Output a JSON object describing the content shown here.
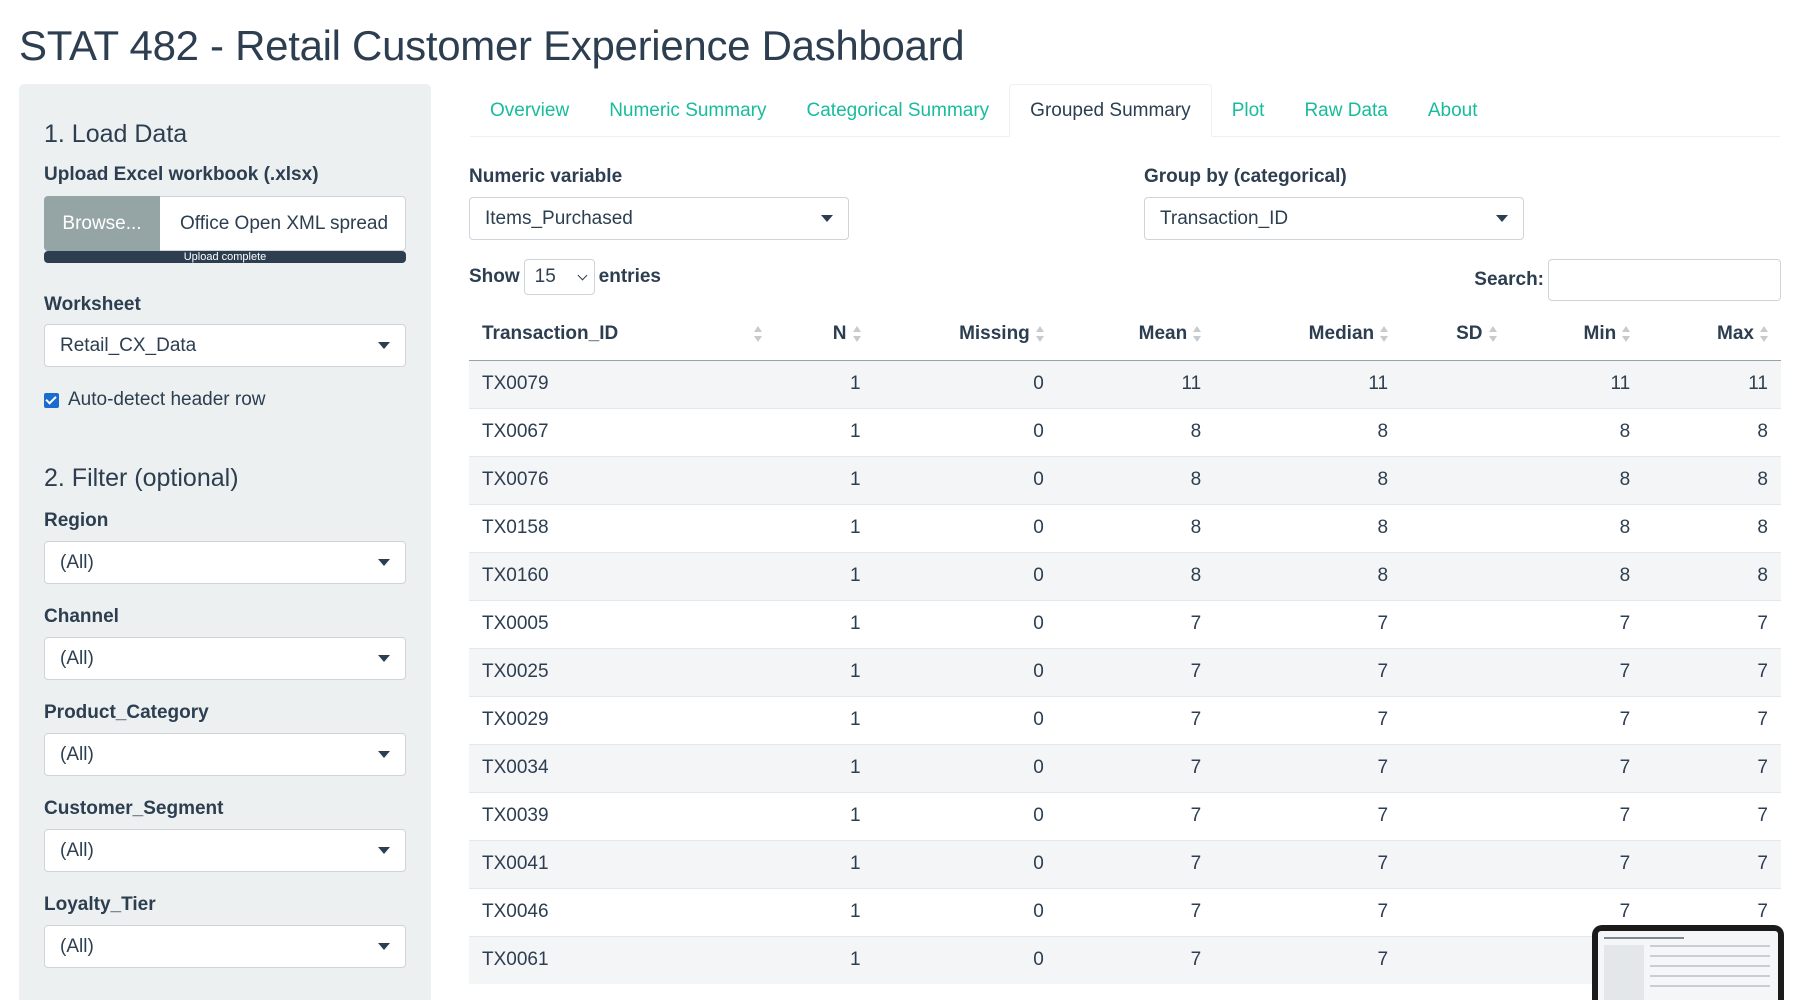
{
  "title": "STAT 482 - Retail Customer Experience Dashboard",
  "sidebar": {
    "load_heading": "1. Load Data",
    "upload_label": "Upload Excel workbook (.xlsx)",
    "browse_label": "Browse...",
    "file_name": "Office Open XML spread",
    "progress_text": "Upload complete",
    "progress_value": 1.0,
    "worksheet_label": "Worksheet",
    "worksheet_value": "Retail_CX_Data",
    "header_checkbox_label": "Auto-detect header row",
    "header_checkbox_checked": true,
    "filter_heading": "2. Filter (optional)",
    "filters": [
      {
        "label": "Region",
        "value": "(All)"
      },
      {
        "label": "Channel",
        "value": "(All)"
      },
      {
        "label": "Product_Category",
        "value": "(All)"
      },
      {
        "label": "Customer_Segment",
        "value": "(All)"
      },
      {
        "label": "Loyalty_Tier",
        "value": "(All)"
      }
    ]
  },
  "tabs": [
    {
      "label": "Overview",
      "active": false
    },
    {
      "label": "Numeric Summary",
      "active": false
    },
    {
      "label": "Categorical Summary",
      "active": false
    },
    {
      "label": "Grouped Summary",
      "active": true
    },
    {
      "label": "Plot",
      "active": false
    },
    {
      "label": "Raw Data",
      "active": false
    },
    {
      "label": "About",
      "active": false
    }
  ],
  "controls": {
    "numeric_label": "Numeric variable",
    "numeric_value": "Items_Purchased",
    "group_label": "Group by (categorical)",
    "group_value": "Transaction_ID",
    "show_label": "Show",
    "entries_value": "15",
    "entries_label": "entries",
    "search_label": "Search:",
    "search_value": ""
  },
  "table": {
    "columns": [
      "Transaction_ID",
      "N",
      "Missing",
      "Mean",
      "Median",
      "SD",
      "Min",
      "Max"
    ],
    "rows": [
      [
        "TX0079",
        "1",
        "0",
        "11",
        "11",
        "",
        "11",
        "11"
      ],
      [
        "TX0067",
        "1",
        "0",
        "8",
        "8",
        "",
        "8",
        "8"
      ],
      [
        "TX0076",
        "1",
        "0",
        "8",
        "8",
        "",
        "8",
        "8"
      ],
      [
        "TX0158",
        "1",
        "0",
        "8",
        "8",
        "",
        "8",
        "8"
      ],
      [
        "TX0160",
        "1",
        "0",
        "8",
        "8",
        "",
        "8",
        "8"
      ],
      [
        "TX0005",
        "1",
        "0",
        "7",
        "7",
        "",
        "7",
        "7"
      ],
      [
        "TX0025",
        "1",
        "0",
        "7",
        "7",
        "",
        "7",
        "7"
      ],
      [
        "TX0029",
        "1",
        "0",
        "7",
        "7",
        "",
        "7",
        "7"
      ],
      [
        "TX0034",
        "1",
        "0",
        "7",
        "7",
        "",
        "7",
        "7"
      ],
      [
        "TX0039",
        "1",
        "0",
        "7",
        "7",
        "",
        "7",
        "7"
      ],
      [
        "TX0041",
        "1",
        "0",
        "7",
        "7",
        "",
        "7",
        "7"
      ],
      [
        "TX0046",
        "1",
        "0",
        "7",
        "7",
        "",
        "7",
        "7"
      ],
      [
        "TX0061",
        "1",
        "0",
        "7",
        "7",
        "",
        "",
        ""
      ]
    ]
  },
  "colors": {
    "primary": "#2c3e50",
    "accent": "#18bc9c",
    "sidebar_bg": "#ecf0f1",
    "browse_bg": "#95a5a6",
    "checkbox": "#1a6ccf"
  }
}
